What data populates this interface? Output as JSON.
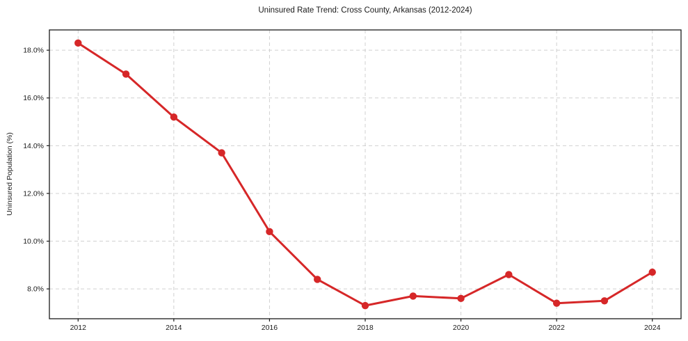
{
  "chart_data": {
    "type": "line",
    "title": "Uninsured Rate Trend: Cross County, Arkansas (2012-2024)",
    "xlabel": "",
    "ylabel": "Uninsured Population (%)",
    "x": [
      2012,
      2013,
      2014,
      2015,
      2016,
      2017,
      2018,
      2019,
      2020,
      2021,
      2022,
      2023,
      2024
    ],
    "values": [
      18.3,
      17.0,
      15.2,
      13.7,
      10.4,
      8.4,
      7.3,
      7.7,
      7.6,
      8.6,
      7.4,
      7.5,
      8.7
    ],
    "xlim": [
      2011.4,
      2024.6
    ],
    "ylim": [
      6.75,
      18.85
    ],
    "xticks": [
      2012,
      2014,
      2016,
      2018,
      2020,
      2022,
      2024
    ],
    "xtick_labels": [
      "2012",
      "2014",
      "2016",
      "2018",
      "2020",
      "2022",
      "2024"
    ],
    "yticks": [
      8,
      10,
      12,
      14,
      16,
      18
    ],
    "ytick_labels": [
      "8.0%",
      "10.0%",
      "12.0%",
      "14.0%",
      "16.0%",
      "18.0%"
    ],
    "legend_position": "none",
    "grid": true,
    "line_color": "#d62728",
    "marker_color": "#d62728",
    "grid_color": "#cccccc",
    "spine_color": "#1a1a1a",
    "background_color": "#ffffff"
  }
}
